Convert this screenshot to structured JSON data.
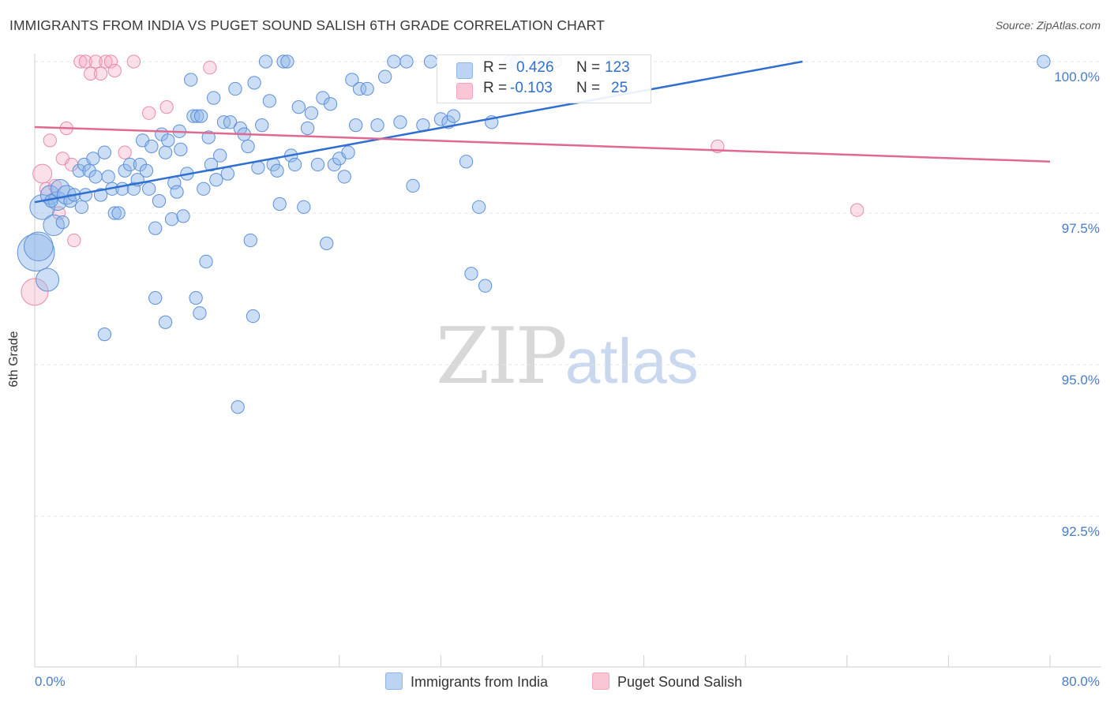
{
  "title": "IMMIGRANTS FROM INDIA VS PUGET SOUND SALISH 6TH GRADE CORRELATION CHART",
  "source": "Source: ZipAtlas.com",
  "watermark": {
    "zip": "ZIP",
    "atlas": "atlas"
  },
  "legend": {
    "series1": {
      "r_label": "R =",
      "r_value": "0.426",
      "n_label": "N =",
      "n_value": "123"
    },
    "series2": {
      "r_label": "R =",
      "r_value": "-0.103",
      "n_label": "N =",
      "n_value": "25"
    }
  },
  "bottom_legend": {
    "series1": "Immigrants from India",
    "series2": "Puget Sound Salish"
  },
  "colors": {
    "blue": "#8fb6e8",
    "blue_line": "#2f6fd1",
    "pink": "#f4a7bf",
    "pink_line": "#e0698f",
    "axis_text": "#4a7cc9"
  },
  "chart_data": {
    "type": "scatter",
    "title": "IMMIGRANTS FROM INDIA VS PUGET SOUND SALISH 6TH GRADE CORRELATION CHART",
    "xlabel": "",
    "ylabel": "6th Grade",
    "xlim": [
      0,
      80
    ],
    "ylim": [
      90.0,
      100.25
    ],
    "x_tick_labels": [
      "0.0%",
      "80.0%"
    ],
    "y_ticks": [
      92.5,
      95.0,
      97.5,
      100.0
    ],
    "y_tick_labels": [
      "92.5%",
      "95.0%",
      "97.5%",
      "100.0%"
    ],
    "grid": true,
    "series": [
      {
        "name": "Immigrants from India",
        "trend": {
          "x": [
            0,
            60.5
          ],
          "y": [
            97.68,
            100.0
          ]
        },
        "points": [
          [
            0.1,
            96.85,
            1.6
          ],
          [
            0.3,
            96.95,
            1.2
          ],
          [
            0.6,
            97.6,
            1.0
          ],
          [
            1.0,
            96.4,
            0.9
          ],
          [
            1.5,
            97.3,
            0.8
          ],
          [
            1.2,
            97.8,
            0.7
          ],
          [
            1.8,
            97.7,
            0.7
          ],
          [
            2.0,
            97.9,
            0.7
          ],
          [
            2.2,
            97.35,
            0.6
          ],
          [
            2.5,
            97.8,
            0.7
          ],
          [
            2.8,
            97.7,
            0.6
          ],
          [
            3.1,
            97.8,
            0.6
          ],
          [
            3.5,
            98.2,
            0.6
          ],
          [
            3.7,
            97.6,
            0.6
          ],
          [
            3.9,
            98.3,
            0.6
          ],
          [
            4.0,
            97.8,
            0.6
          ],
          [
            4.3,
            98.2,
            0.6
          ],
          [
            4.6,
            98.4,
            0.6
          ],
          [
            4.8,
            98.1,
            0.6
          ],
          [
            5.2,
            97.8,
            0.6
          ],
          [
            5.5,
            98.5,
            0.6
          ],
          [
            5.8,
            98.1,
            0.6
          ],
          [
            6.1,
            97.9,
            0.6
          ],
          [
            6.3,
            97.5,
            0.6
          ],
          [
            6.6,
            97.5,
            0.6
          ],
          [
            6.9,
            97.9,
            0.6
          ],
          [
            7.1,
            98.2,
            0.6
          ],
          [
            7.5,
            98.3,
            0.6
          ],
          [
            7.8,
            97.9,
            0.6
          ],
          [
            8.1,
            98.05,
            0.6
          ],
          [
            8.3,
            98.3,
            0.6
          ],
          [
            8.5,
            98.7,
            0.6
          ],
          [
            8.8,
            98.2,
            0.6
          ],
          [
            9.0,
            97.9,
            0.6
          ],
          [
            9.2,
            98.6,
            0.6
          ],
          [
            9.5,
            97.25,
            0.6
          ],
          [
            9.8,
            97.7,
            0.6
          ],
          [
            10.0,
            98.8,
            0.6
          ],
          [
            10.3,
            98.5,
            0.6
          ],
          [
            10.5,
            98.7,
            0.6
          ],
          [
            10.8,
            97.4,
            0.6
          ],
          [
            11.0,
            98.0,
            0.6
          ],
          [
            11.2,
            97.85,
            0.6
          ],
          [
            11.5,
            98.55,
            0.6
          ],
          [
            11.7,
            97.45,
            0.6
          ],
          [
            12.0,
            98.15,
            0.6
          ],
          [
            12.3,
            99.7,
            0.6
          ],
          [
            12.5,
            99.1,
            0.6
          ],
          [
            12.8,
            99.1,
            0.6
          ],
          [
            13.1,
            99.1,
            0.6
          ],
          [
            13.3,
            97.9,
            0.6
          ],
          [
            13.7,
            98.75,
            0.6
          ],
          [
            13.9,
            98.3,
            0.6
          ],
          [
            14.1,
            99.4,
            0.6
          ],
          [
            14.3,
            98.05,
            0.6
          ],
          [
            14.6,
            98.45,
            0.6
          ],
          [
            14.9,
            99.0,
            0.6
          ],
          [
            15.2,
            98.15,
            0.6
          ],
          [
            15.4,
            99.0,
            0.6
          ],
          [
            15.8,
            99.55,
            0.6
          ],
          [
            16.2,
            98.9,
            0.6
          ],
          [
            16.5,
            98.8,
            0.6
          ],
          [
            16.8,
            98.6,
            0.6
          ],
          [
            17.0,
            97.05,
            0.6
          ],
          [
            17.3,
            99.65,
            0.6
          ],
          [
            17.6,
            98.25,
            0.6
          ],
          [
            17.9,
            98.95,
            0.6
          ],
          [
            18.2,
            100.0,
            0.6
          ],
          [
            18.5,
            99.35,
            0.6
          ],
          [
            18.8,
            98.3,
            0.6
          ],
          [
            19.1,
            98.2,
            0.6
          ],
          [
            19.3,
            97.65,
            0.6
          ],
          [
            19.6,
            100.0,
            0.6
          ],
          [
            19.9,
            100.0,
            0.6
          ],
          [
            20.2,
            98.45,
            0.6
          ],
          [
            20.5,
            98.3,
            0.6
          ],
          [
            20.8,
            99.25,
            0.6
          ],
          [
            21.2,
            97.6,
            0.6
          ],
          [
            21.5,
            98.9,
            0.6
          ],
          [
            21.8,
            99.15,
            0.6
          ],
          [
            22.3,
            98.3,
            0.6
          ],
          [
            22.7,
            99.4,
            0.6
          ],
          [
            23.0,
            97.0,
            0.6
          ],
          [
            23.3,
            99.3,
            0.6
          ],
          [
            23.6,
            98.3,
            0.6
          ],
          [
            24.0,
            98.4,
            0.6
          ],
          [
            24.4,
            98.1,
            0.6
          ],
          [
            24.7,
            98.5,
            0.6
          ],
          [
            25.0,
            99.7,
            0.6
          ],
          [
            25.3,
            98.95,
            0.6
          ],
          [
            25.6,
            99.55,
            0.6
          ],
          [
            26.2,
            99.55,
            0.6
          ],
          [
            27.0,
            98.95,
            0.6
          ],
          [
            27.6,
            99.75,
            0.6
          ],
          [
            28.3,
            100.0,
            0.6
          ],
          [
            28.8,
            99.0,
            0.6
          ],
          [
            29.3,
            100.0,
            0.6
          ],
          [
            29.8,
            97.95,
            0.6
          ],
          [
            30.6,
            98.95,
            0.6
          ],
          [
            31.2,
            100.0,
            0.6
          ],
          [
            32.0,
            99.05,
            0.6
          ],
          [
            32.6,
            99.0,
            0.6
          ],
          [
            33.0,
            99.1,
            0.6
          ],
          [
            34.0,
            98.35,
            0.6
          ],
          [
            34.4,
            96.5,
            0.6
          ],
          [
            35.0,
            97.6,
            0.6
          ],
          [
            35.5,
            96.3,
            0.6
          ],
          [
            36.0,
            99.0,
            0.6
          ],
          [
            37.5,
            100.0,
            0.6
          ],
          [
            38.0,
            100.0,
            0.6
          ],
          [
            40.0,
            100.0,
            0.6
          ],
          [
            41.0,
            100.0,
            0.6
          ],
          [
            79.5,
            100.0,
            0.6
          ],
          [
            13.0,
            95.85,
            0.6
          ],
          [
            12.7,
            96.1,
            0.6
          ],
          [
            9.5,
            96.1,
            0.6
          ],
          [
            10.3,
            95.7,
            0.6
          ],
          [
            5.5,
            95.5,
            0.6
          ],
          [
            17.2,
            95.8,
            0.6
          ],
          [
            16.0,
            94.3,
            0.6
          ],
          [
            13.5,
            96.7,
            0.6
          ],
          [
            11.4,
            98.85,
            0.6
          ],
          [
            1.3,
            97.7,
            0.6
          ]
        ]
      },
      {
        "name": "Puget Sound Salish",
        "trend": {
          "x": [
            0,
            80
          ],
          "y": [
            98.92,
            98.35
          ]
        },
        "points": [
          [
            0.0,
            96.2,
            1.1
          ],
          [
            0.6,
            98.15,
            0.7
          ],
          [
            0.9,
            97.9,
            0.6
          ],
          [
            1.2,
            98.7,
            0.6
          ],
          [
            1.6,
            97.95,
            0.6
          ],
          [
            1.9,
            97.5,
            0.6
          ],
          [
            2.2,
            98.4,
            0.6
          ],
          [
            2.5,
            98.9,
            0.6
          ],
          [
            2.9,
            98.3,
            0.6
          ],
          [
            3.1,
            97.05,
            0.6
          ],
          [
            3.6,
            100.0,
            0.6
          ],
          [
            4.0,
            100.0,
            0.6
          ],
          [
            4.4,
            99.8,
            0.6
          ],
          [
            4.8,
            100.0,
            0.6
          ],
          [
            5.2,
            99.8,
            0.6
          ],
          [
            5.6,
            100.0,
            0.6
          ],
          [
            6.0,
            100.0,
            0.6
          ],
          [
            6.3,
            99.85,
            0.6
          ],
          [
            7.1,
            98.5,
            0.6
          ],
          [
            7.8,
            100.0,
            0.6
          ],
          [
            9.0,
            99.15,
            0.6
          ],
          [
            10.4,
            99.25,
            0.6
          ],
          [
            13.8,
            99.9,
            0.6
          ],
          [
            53.8,
            98.6,
            0.6
          ],
          [
            64.8,
            97.55,
            0.6
          ]
        ]
      }
    ]
  }
}
